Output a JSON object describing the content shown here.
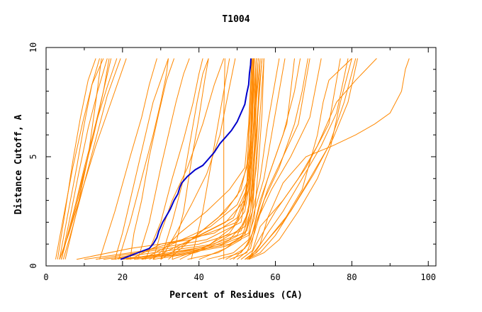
{
  "chart_data": {
    "type": "line",
    "title": "T1004",
    "xlabel": "Percent of Residues (CA)",
    "ylabel": "Distance Cutoff, A",
    "xlim": [
      0,
      102
    ],
    "ylim": [
      0,
      10
    ],
    "x_ticks": [
      "0",
      "20",
      "40",
      "60",
      "80",
      "100"
    ],
    "y_ticks": [
      "0",
      "5",
      "10"
    ],
    "grid": false,
    "legend": "none",
    "colors": {
      "highlight": "#0000cc",
      "others": "#ff8800"
    },
    "highlight_series": {
      "name": "",
      "x": [
        19.5,
        21,
        24,
        27,
        28,
        29,
        29.5,
        30,
        30.5,
        31.5,
        32.5,
        33.5,
        34.5,
        35,
        35.5,
        37,
        39,
        41,
        42.5,
        44,
        45.5,
        47,
        48.5,
        50,
        51,
        52,
        52.5,
        53,
        53.2,
        53.5,
        53.6
      ],
      "y": [
        0.3,
        0.4,
        0.6,
        0.8,
        1.0,
        1.3,
        1.6,
        1.8,
        2.0,
        2.3,
        2.6,
        3.0,
        3.3,
        3.6,
        3.8,
        4.1,
        4.4,
        4.6,
        4.9,
        5.2,
        5.6,
        5.9,
        6.2,
        6.6,
        7.0,
        7.4,
        7.9,
        8.3,
        8.8,
        9.2,
        9.5
      ]
    },
    "series": [
      {
        "x": [
          3,
          5,
          7,
          9,
          11,
          13
        ],
        "y": [
          0.3,
          2.5,
          4.8,
          6.8,
          8.5,
          9.5
        ]
      },
      {
        "x": [
          3.5,
          5.5,
          8,
          10,
          12,
          14
        ],
        "y": [
          0.3,
          2.2,
          4.5,
          6.5,
          8.3,
          9.5
        ]
      },
      {
        "x": [
          4,
          6,
          8.5,
          11,
          13.5,
          16
        ],
        "y": [
          0.3,
          2.0,
          4.2,
          6.3,
          8.0,
          9.5
        ]
      },
      {
        "x": [
          4,
          7,
          10,
          13,
          16,
          18.5
        ],
        "y": [
          0.3,
          2.3,
          4.5,
          6.5,
          8.2,
          9.5
        ]
      },
      {
        "x": [
          4.5,
          7,
          10,
          13,
          16,
          19.5
        ],
        "y": [
          0.3,
          1.8,
          3.8,
          5.8,
          7.8,
          9.5
        ]
      },
      {
        "x": [
          3.5,
          6,
          9,
          12,
          15,
          17
        ],
        "y": [
          0.3,
          1.5,
          3.5,
          5.8,
          8.0,
          9.5
        ]
      },
      {
        "x": [
          4,
          6.5,
          9.5,
          12.5,
          15,
          16.5
        ],
        "y": [
          0.3,
          2.0,
          4.0,
          6.0,
          8.0,
          9.5
        ]
      },
      {
        "x": [
          2.5,
          4.5,
          7,
          9.5,
          12,
          15
        ],
        "y": [
          0.3,
          2.2,
          4.5,
          6.5,
          8.3,
          9.5
        ]
      },
      {
        "x": [
          3.5,
          6,
          9.5,
          13,
          17,
          21
        ],
        "y": [
          0.3,
          1.5,
          3.5,
          5.5,
          7.5,
          9.5
        ]
      },
      {
        "x": [
          5,
          8,
          11,
          13,
          14.5
        ],
        "y": [
          0.3,
          2.5,
          5.0,
          7.5,
          9.5
        ]
      },
      {
        "x": [
          14,
          18,
          22,
          25,
          27,
          29
        ],
        "y": [
          0.3,
          2.5,
          5.0,
          6.8,
          8.3,
          9.5
        ]
      },
      {
        "x": [
          18,
          20,
          22,
          24,
          26,
          28,
          30,
          32
        ],
        "y": [
          0.3,
          1.5,
          3.0,
          4.5,
          6.0,
          7.5,
          8.5,
          9.5
        ]
      },
      {
        "x": [
          22,
          23,
          25,
          27,
          29.5,
          31.5,
          33.5
        ],
        "y": [
          0.3,
          1.5,
          3.0,
          5.0,
          7.0,
          8.5,
          9.5
        ]
      },
      {
        "x": [
          19,
          22,
          25,
          28,
          30,
          31.5,
          32
        ],
        "y": [
          0.3,
          2.0,
          4.0,
          6.0,
          7.5,
          8.8,
          9.5
        ]
      },
      {
        "x": [
          24,
          27,
          30,
          32,
          34,
          36,
          37.5
        ],
        "y": [
          0.3,
          2.0,
          4.5,
          6.0,
          7.5,
          8.8,
          9.5
        ]
      },
      {
        "x": [
          26,
          30,
          33,
          36,
          38.5,
          40,
          41
        ],
        "y": [
          0.3,
          2.0,
          4.0,
          5.8,
          7.5,
          8.8,
          9.5
        ]
      },
      {
        "x": [
          28,
          30,
          33,
          37,
          41,
          44,
          46.5
        ],
        "y": [
          0.3,
          1.5,
          3.0,
          4.5,
          6.5,
          8.3,
          9.5
        ]
      },
      {
        "x": [
          30,
          34,
          38,
          42,
          45.5,
          48,
          49.5
        ],
        "y": [
          0.3,
          1.5,
          2.8,
          4.2,
          6.0,
          8.2,
          9.5
        ]
      },
      {
        "x": [
          30,
          33,
          36,
          38,
          39.5,
          41,
          42.5
        ],
        "y": [
          0.3,
          2.0,
          4.0,
          6.0,
          7.5,
          8.8,
          9.5
        ]
      },
      {
        "x": [
          33,
          36,
          38,
          40,
          41.5,
          42.5
        ],
        "y": [
          0.3,
          2.5,
          4.8,
          6.8,
          8.5,
          9.5
        ]
      },
      {
        "x": [
          38,
          41,
          43.5,
          45.5,
          47,
          48
        ],
        "y": [
          0.3,
          2.5,
          5.0,
          7.0,
          8.5,
          9.5
        ]
      },
      {
        "x": [
          46.5,
          46.5,
          46.5,
          46.8
        ],
        "y": [
          0.3,
          3.5,
          7.0,
          9.5
        ]
      },
      {
        "x": [
          13,
          24,
          40,
          51,
          53,
          54,
          54.5,
          55
        ],
        "y": [
          0.3,
          0.6,
          1.0,
          1.6,
          2.5,
          5.0,
          7.5,
          9.5
        ]
      },
      {
        "x": [
          15,
          28,
          44,
          52,
          53.5,
          54.5,
          55,
          55.5
        ],
        "y": [
          0.3,
          0.6,
          1.0,
          1.8,
          3.0,
          5.5,
          8.0,
          9.5
        ]
      },
      {
        "x": [
          8,
          22,
          38,
          50,
          53,
          53.5,
          54,
          54.5
        ],
        "y": [
          0.3,
          0.8,
          1.2,
          2.0,
          3.5,
          6.0,
          8.0,
          9.5
        ]
      },
      {
        "x": [
          10,
          26,
          42,
          51,
          52.5,
          53,
          53.5,
          53.8
        ],
        "y": [
          0.3,
          0.7,
          1.2,
          2.0,
          3.5,
          6.0,
          8.0,
          9.5
        ]
      },
      {
        "x": [
          20,
          32,
          46,
          52.5,
          54,
          55,
          55.5,
          56
        ],
        "y": [
          0.3,
          0.6,
          1.0,
          1.6,
          2.5,
          5.0,
          7.5,
          9.5
        ]
      },
      {
        "x": [
          23,
          34,
          47,
          53,
          54.5,
          55.5,
          56.5,
          57
        ],
        "y": [
          0.3,
          0.5,
          0.9,
          1.4,
          2.2,
          4.5,
          7.0,
          9.5
        ]
      },
      {
        "x": [
          25,
          36,
          48,
          53,
          54,
          54.5,
          55,
          55.5
        ],
        "y": [
          0.3,
          0.6,
          1.0,
          1.5,
          2.5,
          5.0,
          7.5,
          9.5
        ]
      },
      {
        "x": [
          22,
          30,
          44,
          50,
          52,
          53.5,
          54,
          54.5
        ],
        "y": [
          0.3,
          1.0,
          1.5,
          2.2,
          3.2,
          5.0,
          7.5,
          9.5
        ]
      },
      {
        "x": [
          28,
          35,
          42,
          48,
          52,
          53,
          53.8
        ],
        "y": [
          0.3,
          1.5,
          2.5,
          3.5,
          4.5,
          6.5,
          9.5
        ]
      },
      {
        "x": [
          30,
          38,
          45,
          50,
          52.5,
          53.5,
          54
        ],
        "y": [
          0.3,
          1.2,
          2.2,
          3.2,
          4.5,
          7.0,
          9.5
        ]
      },
      {
        "x": [
          25,
          33,
          43,
          50,
          53,
          54,
          54.5
        ],
        "y": [
          0.3,
          1.0,
          1.8,
          2.8,
          4.0,
          6.5,
          9.5
        ]
      },
      {
        "x": [
          18,
          28,
          40,
          49,
          52.5,
          53.5,
          54.2
        ],
        "y": [
          0.3,
          0.8,
          1.4,
          2.2,
          3.5,
          6.0,
          9.5
        ]
      },
      {
        "x": [
          32,
          40,
          47,
          51,
          53,
          54,
          55
        ],
        "y": [
          0.3,
          1.5,
          2.5,
          3.5,
          5.0,
          7.0,
          9.5
        ]
      },
      {
        "x": [
          35,
          43,
          49,
          52,
          53.5,
          54.5,
          55.5
        ],
        "y": [
          0.3,
          1.0,
          1.8,
          2.8,
          4.5,
          7.0,
          9.5
        ]
      },
      {
        "x": [
          28,
          39,
          48,
          52,
          54,
          55,
          56.5
        ],
        "y": [
          0.3,
          0.6,
          1.2,
          2.0,
          3.5,
          6.0,
          9.5
        ]
      },
      {
        "x": [
          33,
          41,
          48,
          52,
          53.5,
          54.5,
          55
        ],
        "y": [
          0.3,
          0.8,
          1.5,
          2.5,
          4.0,
          6.5,
          9.5
        ]
      },
      {
        "x": [
          21,
          31,
          42,
          50,
          53,
          53.5,
          54,
          54.3
        ],
        "y": [
          0.3,
          0.5,
          0.9,
          1.4,
          2.5,
          5.0,
          7.5,
          9.5
        ]
      },
      {
        "x": [
          17,
          30,
          45,
          52,
          53.5,
          54.5,
          55.5,
          56.5
        ],
        "y": [
          0.3,
          0.5,
          0.9,
          1.4,
          2.5,
          5.0,
          7.5,
          9.5
        ]
      },
      {
        "x": [
          37,
          45,
          51,
          53.5,
          55,
          56,
          57
        ],
        "y": [
          0.3,
          0.6,
          1.2,
          2.5,
          4.5,
          7.0,
          9.5
        ]
      },
      {
        "x": [
          27,
          38,
          47,
          52,
          53.5,
          55,
          56
        ],
        "y": [
          0.3,
          1.2,
          2.0,
          3.0,
          5.0,
          7.5,
          9.5
        ]
      },
      {
        "x": [
          40,
          47,
          52,
          54,
          56,
          58,
          61
        ],
        "y": [
          0.3,
          0.8,
          1.5,
          2.5,
          4.0,
          6.5,
          9.5
        ]
      },
      {
        "x": [
          42,
          49,
          53,
          54.5,
          57,
          59.5,
          62.5
        ],
        "y": [
          0.3,
          0.6,
          1.2,
          2.5,
          4.0,
          6.5,
          9.5
        ]
      },
      {
        "x": [
          45,
          51,
          53.5,
          55.5,
          58,
          62,
          65,
          66.5
        ],
        "y": [
          0.3,
          0.6,
          1.2,
          2.5,
          4.0,
          6.0,
          8.0,
          9.5
        ]
      },
      {
        "x": [
          47,
          52,
          54,
          56,
          60,
          63,
          64,
          65
        ],
        "y": [
          0.3,
          0.8,
          1.5,
          3.0,
          5.0,
          6.5,
          8.0,
          9.5
        ]
      },
      {
        "x": [
          48,
          52.5,
          54.5,
          57,
          61,
          65,
          67,
          68.5
        ],
        "y": [
          0.3,
          0.6,
          1.5,
          3.0,
          4.5,
          6.5,
          8.0,
          9.5
        ]
      },
      {
        "x": [
          49,
          53,
          55,
          58,
          62,
          66,
          69
        ],
        "y": [
          0.3,
          1.0,
          2.0,
          3.5,
          5.0,
          6.5,
          9.5
        ]
      },
      {
        "x": [
          50,
          53.5,
          55,
          59,
          64,
          69,
          72
        ],
        "y": [
          0.3,
          0.8,
          2.0,
          3.5,
          5.0,
          6.8,
          9.5
        ]
      },
      {
        "x": [
          51,
          54,
          56,
          62,
          68,
          74,
          77
        ],
        "y": [
          0.3,
          0.7,
          1.8,
          3.0,
          4.5,
          6.5,
          9.5
        ]
      },
      {
        "x": [
          52,
          55,
          58,
          62,
          67,
          72,
          76,
          79
        ],
        "y": [
          0.3,
          0.7,
          1.5,
          2.5,
          4.0,
          5.5,
          7.0,
          9.5
        ]
      },
      {
        "x": [
          52,
          55,
          58,
          64,
          70,
          74,
          78,
          81
        ],
        "y": [
          0.3,
          0.6,
          1.2,
          2.5,
          4.2,
          5.5,
          7.5,
          9.5
        ]
      },
      {
        "x": [
          52.5,
          56,
          60,
          65,
          70,
          75,
          79,
          81.5
        ],
        "y": [
          0.3,
          0.6,
          1.4,
          2.8,
          4.3,
          5.8,
          7.5,
          9.5
        ]
      },
      {
        "x": [
          53,
          57,
          61,
          66,
          71,
          74.5,
          77,
          80
        ],
        "y": [
          0.3,
          0.6,
          1.2,
          2.5,
          4.0,
          5.5,
          7.5,
          9.5
        ]
      },
      {
        "x": [
          53,
          56,
          62,
          67,
          71,
          72.5,
          74,
          80
        ],
        "y": [
          0.3,
          0.8,
          2.0,
          3.5,
          6.0,
          7.5,
          8.5,
          9.5
        ]
      },
      {
        "x": [
          53,
          55,
          60,
          66,
          71,
          73,
          76,
          81,
          86.5
        ],
        "y": [
          0.3,
          1.0,
          2.5,
          4.0,
          5.5,
          6.3,
          7.5,
          8.5,
          9.5
        ]
      },
      {
        "x": [
          53,
          56,
          58,
          62,
          68,
          75,
          81,
          86,
          90,
          93,
          94,
          95
        ],
        "y": [
          0.3,
          1.0,
          2.2,
          3.8,
          5.0,
          5.5,
          6.0,
          6.5,
          7.0,
          8.0,
          9.0,
          9.5
        ]
      }
    ]
  }
}
